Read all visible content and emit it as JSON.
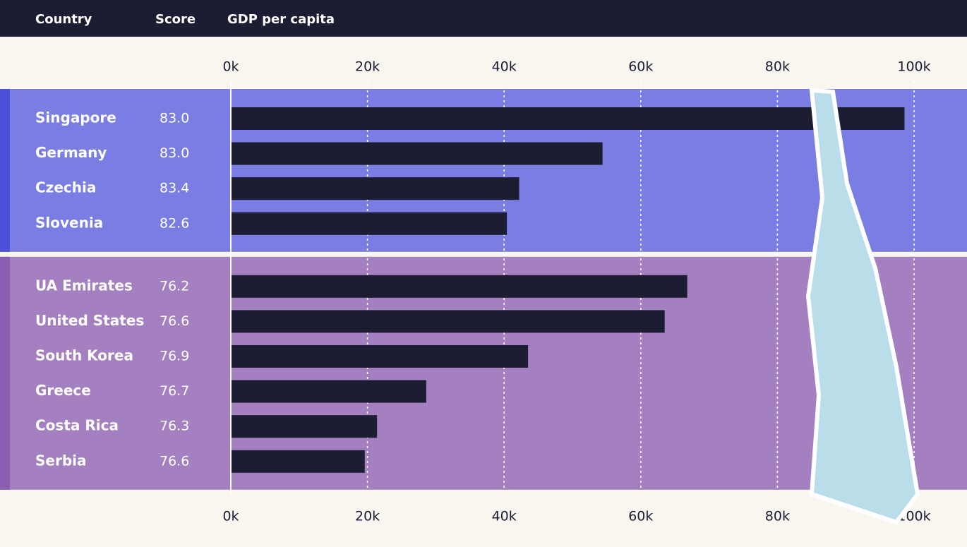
{
  "chart_data": {
    "type": "bar",
    "column_headers": [
      "Country",
      "Score",
      "GDP per capita"
    ],
    "xlim": [
      0,
      100
    ],
    "xticks": [
      {
        "value": 0,
        "label": "0k"
      },
      {
        "value": 20,
        "label": "20k"
      },
      {
        "value": 40,
        "label": "40k"
      },
      {
        "value": 60,
        "label": "60k"
      },
      {
        "value": 80,
        "label": "80k"
      },
      {
        "value": 100,
        "label": "100k"
      }
    ],
    "grid": true,
    "bar_color": "#1c1d33",
    "groups": [
      {
        "color": "#7a7de2",
        "accent": "#4c4fd8",
        "categories": [
          "Singapore",
          "Germany",
          "Czechia",
          "Slovenia"
        ],
        "scores": [
          "83.0",
          "83.0",
          "83.4",
          "82.6"
        ],
        "values": [
          98.5,
          54.3,
          42.1,
          40.3
        ]
      },
      {
        "color": "#a480c0",
        "accent": "#8a5fb1",
        "categories": [
          "UA Emirates",
          "United States",
          "South Korea",
          "Greece",
          "Costa Rica",
          "Serbia"
        ],
        "scores": [
          "76.2",
          "76.6",
          "76.9",
          "76.7",
          "76.3",
          "76.6"
        ],
        "values": [
          66.7,
          63.4,
          43.4,
          28.5,
          21.3,
          19.5
        ]
      }
    ]
  }
}
